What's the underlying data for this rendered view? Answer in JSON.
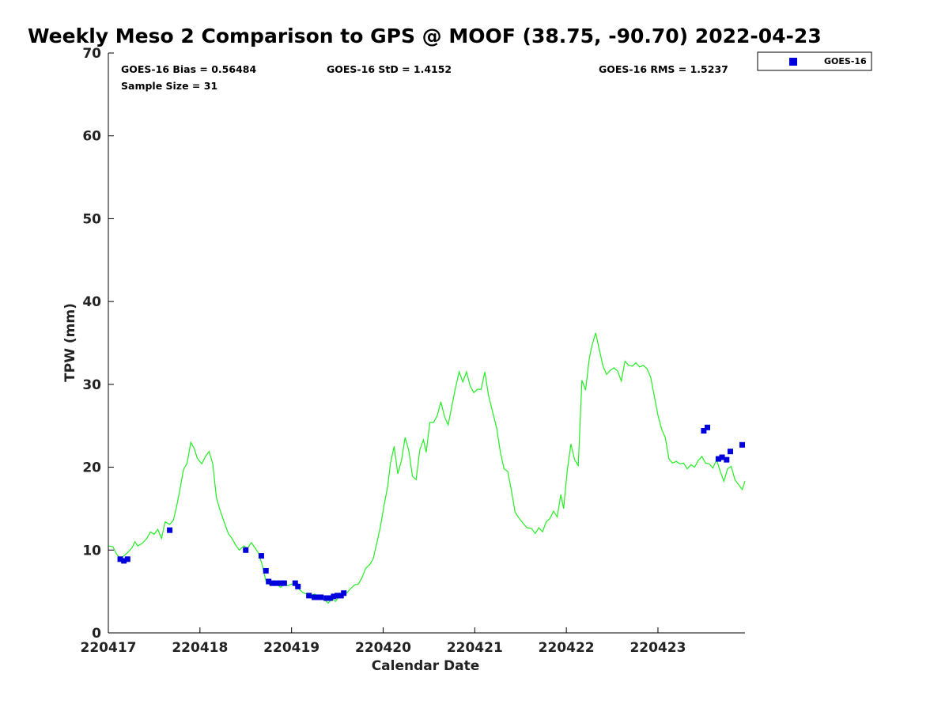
{
  "chart_data": {
    "type": "scatter",
    "title": "Weekly Meso 2 Comparison to GPS @ MOOF (38.75, -90.70) 2022-04-23",
    "xlabel": "Calendar Date",
    "ylabel": "TPW (mm)",
    "xlim": [
      220417.0,
      220423.95
    ],
    "ylim": [
      0,
      70
    ],
    "x_ticks": [
      220417,
      220418,
      220419,
      220420,
      220421,
      220422,
      220423
    ],
    "x_tick_labels": [
      "220417",
      "220418",
      "220419",
      "220420",
      "220421",
      "220422",
      "220423"
    ],
    "y_ticks": [
      0,
      10,
      20,
      30,
      40,
      50,
      60,
      70
    ],
    "y_tick_labels": [
      "0",
      "10",
      "20",
      "30",
      "40",
      "50",
      "60",
      "70"
    ],
    "grid": false,
    "legend_position": "outside-top-right",
    "stats": {
      "bias": "GOES-16 Bias = 0.56484",
      "std": "GOES-16 StD = 1.4152",
      "rms": "GOES-16 RMS = 1.5237",
      "sample_size": "Sample Size = 31"
    },
    "series": [
      {
        "name": "GOES-16",
        "kind": "scatter",
        "marker": "square",
        "color": "#0000dd",
        "points": [
          [
            220417.13,
            8.9
          ],
          [
            220417.17,
            8.7
          ],
          [
            220417.21,
            8.9
          ],
          [
            220417.67,
            12.4
          ],
          [
            220418.5,
            10.0
          ],
          [
            220418.67,
            9.3
          ],
          [
            220418.72,
            7.5
          ],
          [
            220418.75,
            6.2
          ],
          [
            220418.79,
            6.0
          ],
          [
            220418.84,
            6.0
          ],
          [
            220418.88,
            6.0
          ],
          [
            220418.92,
            6.0
          ],
          [
            220419.04,
            6.0
          ],
          [
            220419.07,
            5.6
          ],
          [
            220419.19,
            4.5
          ],
          [
            220419.25,
            4.3
          ],
          [
            220419.29,
            4.3
          ],
          [
            220419.32,
            4.3
          ],
          [
            220419.38,
            4.2
          ],
          [
            220419.42,
            4.2
          ],
          [
            220419.46,
            4.4
          ],
          [
            220419.5,
            4.5
          ],
          [
            220419.54,
            4.5
          ],
          [
            220419.57,
            4.8
          ],
          [
            220423.5,
            24.4
          ],
          [
            220423.54,
            24.8
          ],
          [
            220423.66,
            21.0
          ],
          [
            220423.7,
            21.2
          ],
          [
            220423.75,
            20.9
          ],
          [
            220423.79,
            21.9
          ],
          [
            220423.92,
            22.7
          ]
        ]
      },
      {
        "kind": "line",
        "color": "#22ee22",
        "points": [
          [
            220417.0,
            10.5
          ],
          [
            220417.05,
            10.4
          ],
          [
            220417.09,
            9.5
          ],
          [
            220417.13,
            9.0
          ],
          [
            220417.17,
            9.3
          ],
          [
            220417.22,
            9.8
          ],
          [
            220417.26,
            10.3
          ],
          [
            220417.29,
            11.0
          ],
          [
            220417.32,
            10.5
          ],
          [
            220417.37,
            10.8
          ],
          [
            220417.42,
            11.4
          ],
          [
            220417.46,
            12.2
          ],
          [
            220417.5,
            11.9
          ],
          [
            220417.54,
            12.5
          ],
          [
            220417.58,
            11.4
          ],
          [
            220417.62,
            13.4
          ],
          [
            220417.67,
            13.1
          ],
          [
            220417.71,
            13.6
          ],
          [
            220417.74,
            15.0
          ],
          [
            220417.78,
            17.2
          ],
          [
            220417.82,
            19.7
          ],
          [
            220417.86,
            20.5
          ],
          [
            220417.9,
            23.0
          ],
          [
            220417.94,
            22.2
          ],
          [
            220417.97,
            21.1
          ],
          [
            220418.02,
            20.4
          ],
          [
            220418.06,
            21.3
          ],
          [
            220418.1,
            21.9
          ],
          [
            220418.14,
            20.4
          ],
          [
            220418.18,
            16.3
          ],
          [
            220418.22,
            14.8
          ],
          [
            220418.27,
            13.2
          ],
          [
            220418.31,
            12.0
          ],
          [
            220418.35,
            11.4
          ],
          [
            220418.39,
            10.6
          ],
          [
            220418.43,
            10.0
          ],
          [
            220418.48,
            10.5
          ],
          [
            220418.52,
            10.2
          ],
          [
            220418.56,
            10.9
          ],
          [
            220418.6,
            10.3
          ],
          [
            220418.64,
            9.6
          ],
          [
            220418.68,
            8.2
          ],
          [
            220418.72,
            6.3
          ],
          [
            220418.76,
            5.8
          ],
          [
            220418.8,
            6.2
          ],
          [
            220418.84,
            5.9
          ],
          [
            220418.88,
            5.5
          ],
          [
            220418.92,
            5.9
          ],
          [
            220418.96,
            5.7
          ],
          [
            220419.0,
            5.9
          ],
          [
            220419.04,
            5.7
          ],
          [
            220419.08,
            5.3
          ],
          [
            220419.12,
            4.9
          ],
          [
            220419.16,
            4.7
          ],
          [
            220419.21,
            4.5
          ],
          [
            220419.25,
            4.7
          ],
          [
            220419.29,
            4.4
          ],
          [
            220419.33,
            4.1
          ],
          [
            220419.37,
            3.9
          ],
          [
            220419.4,
            3.6
          ],
          [
            220419.44,
            4.1
          ],
          [
            220419.48,
            3.8
          ],
          [
            220419.52,
            4.4
          ],
          [
            220419.56,
            4.6
          ],
          [
            220419.6,
            4.8
          ],
          [
            220419.64,
            5.3
          ],
          [
            220419.69,
            5.8
          ],
          [
            220419.73,
            5.9
          ],
          [
            220419.77,
            6.7
          ],
          [
            220419.81,
            7.8
          ],
          [
            220419.85,
            8.2
          ],
          [
            220419.89,
            8.9
          ],
          [
            220419.93,
            10.8
          ],
          [
            220419.97,
            12.8
          ],
          [
            220420.01,
            15.4
          ],
          [
            220420.05,
            17.7
          ],
          [
            220420.08,
            20.5
          ],
          [
            220420.12,
            22.5
          ],
          [
            220420.16,
            19.2
          ],
          [
            220420.2,
            20.8
          ],
          [
            220420.24,
            23.6
          ],
          [
            220420.28,
            22.0
          ],
          [
            220420.32,
            18.9
          ],
          [
            220420.36,
            18.5
          ],
          [
            220420.4,
            22.1
          ],
          [
            220420.44,
            23.3
          ],
          [
            220420.47,
            21.8
          ],
          [
            220420.51,
            25.4
          ],
          [
            220420.55,
            25.4
          ],
          [
            220420.59,
            26.2
          ],
          [
            220420.63,
            27.9
          ],
          [
            220420.67,
            26.1
          ],
          [
            220420.71,
            25.1
          ],
          [
            220420.75,
            27.4
          ],
          [
            220420.79,
            29.6
          ],
          [
            220420.83,
            31.5
          ],
          [
            220420.87,
            30.3
          ],
          [
            220420.91,
            31.5
          ],
          [
            220420.95,
            29.8
          ],
          [
            220420.99,
            29.0
          ],
          [
            220421.03,
            29.4
          ],
          [
            220421.07,
            29.4
          ],
          [
            220421.11,
            31.5
          ],
          [
            220421.15,
            28.7
          ],
          [
            220421.19,
            26.9
          ],
          [
            220421.24,
            24.7
          ],
          [
            220421.28,
            21.8
          ],
          [
            220421.32,
            19.8
          ],
          [
            220421.36,
            19.5
          ],
          [
            220421.4,
            17.2
          ],
          [
            220421.44,
            14.6
          ],
          [
            220421.48,
            13.9
          ],
          [
            220421.53,
            13.2
          ],
          [
            220421.57,
            12.7
          ],
          [
            220421.62,
            12.6
          ],
          [
            220421.66,
            12.0
          ],
          [
            220421.7,
            12.7
          ],
          [
            220421.74,
            12.2
          ],
          [
            220421.78,
            13.4
          ],
          [
            220421.82,
            13.8
          ],
          [
            220421.86,
            14.7
          ],
          [
            220421.9,
            14.0
          ],
          [
            220421.94,
            16.7
          ],
          [
            220421.97,
            15.0
          ],
          [
            220422.01,
            19.6
          ],
          [
            220422.05,
            22.8
          ],
          [
            220422.09,
            20.9
          ],
          [
            220422.13,
            20.2
          ],
          [
            220422.17,
            30.5
          ],
          [
            220422.21,
            29.3
          ],
          [
            220422.25,
            33.1
          ],
          [
            220422.28,
            34.7
          ],
          [
            220422.32,
            36.2
          ],
          [
            220422.36,
            34.2
          ],
          [
            220422.4,
            32.2
          ],
          [
            220422.44,
            31.2
          ],
          [
            220422.48,
            31.7
          ],
          [
            220422.52,
            32.0
          ],
          [
            220422.56,
            31.6
          ],
          [
            220422.6,
            30.4
          ],
          [
            220422.64,
            32.8
          ],
          [
            220422.68,
            32.3
          ],
          [
            220422.72,
            32.2
          ],
          [
            220422.76,
            32.6
          ],
          [
            220422.8,
            32.1
          ],
          [
            220422.84,
            32.3
          ],
          [
            220422.88,
            31.9
          ],
          [
            220422.92,
            30.9
          ],
          [
            220422.96,
            28.6
          ],
          [
            220423.0,
            26.3
          ],
          [
            220423.04,
            24.6
          ],
          [
            220423.08,
            23.6
          ],
          [
            220423.12,
            21.0
          ],
          [
            220423.16,
            20.5
          ],
          [
            220423.2,
            20.7
          ],
          [
            220423.24,
            20.4
          ],
          [
            220423.28,
            20.5
          ],
          [
            220423.32,
            19.8
          ],
          [
            220423.36,
            20.3
          ],
          [
            220423.4,
            20.0
          ],
          [
            220423.44,
            20.8
          ],
          [
            220423.48,
            21.3
          ],
          [
            220423.52,
            20.5
          ],
          [
            220423.56,
            20.4
          ],
          [
            220423.6,
            19.9
          ],
          [
            220423.64,
            20.9
          ],
          [
            220423.68,
            19.5
          ],
          [
            220423.72,
            18.3
          ],
          [
            220423.76,
            19.8
          ],
          [
            220423.8,
            20.1
          ],
          [
            220423.84,
            18.5
          ],
          [
            220423.88,
            17.9
          ],
          [
            220423.92,
            17.3
          ],
          [
            220423.95,
            18.3
          ]
        ]
      }
    ]
  }
}
